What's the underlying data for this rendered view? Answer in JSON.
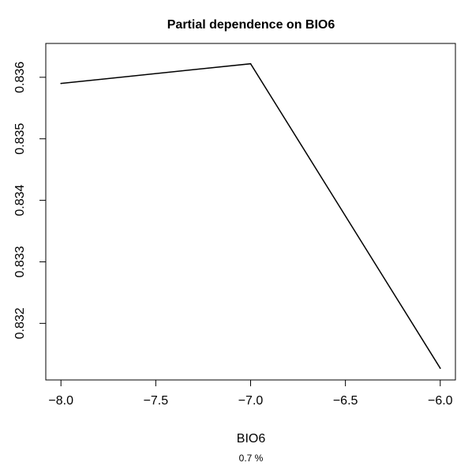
{
  "chart_data": {
    "type": "line",
    "title": "Partial dependence on BIO6",
    "xlabel": "BIO6",
    "ylabel": "",
    "subtitle": "0.7 %",
    "x": [
      -8.0,
      -7.0,
      -6.0
    ],
    "series": [
      {
        "values": [
          0.8359,
          0.83622,
          0.83127
        ]
      }
    ],
    "xlim": [
      -8.08,
      -5.92
    ],
    "ylim": [
      0.83108,
      0.83655
    ],
    "xticks": [
      -8.0,
      -7.5,
      -7.0,
      -6.5,
      -6.0
    ],
    "xtick_labels": [
      "−8.0",
      "−7.5",
      "−7.0",
      "−6.5",
      "−6.0"
    ],
    "yticks": [
      0.832,
      0.833,
      0.834,
      0.835,
      0.836
    ],
    "ytick_labels": [
      "0.832",
      "0.833",
      "0.834",
      "0.835",
      "0.836"
    ],
    "grid": false,
    "legend": "none",
    "line_color": "#000000"
  }
}
